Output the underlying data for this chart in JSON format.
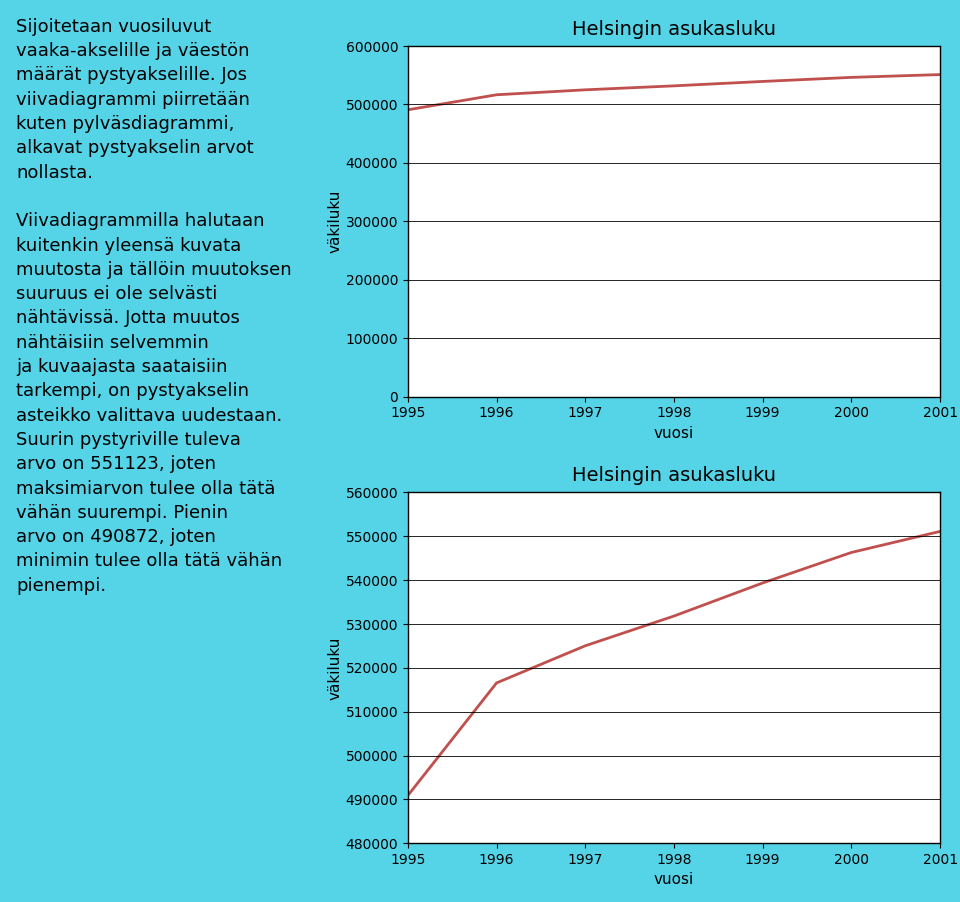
{
  "years": [
    1995,
    1996,
    1997,
    1998,
    1999,
    2000,
    2001
  ],
  "population": [
    490872,
    516562,
    525031,
    531816,
    539363,
    546317,
    551123
  ],
  "title": "Helsingin asukasluku",
  "xlabel": "vuosi",
  "ylabel": "väkiluku",
  "chart1_ylim": [
    0,
    600000
  ],
  "chart1_yticks": [
    0,
    100000,
    200000,
    300000,
    400000,
    500000,
    600000
  ],
  "chart2_ylim": [
    480000,
    560000
  ],
  "chart2_yticks": [
    480000,
    490000,
    500000,
    510000,
    520000,
    530000,
    540000,
    550000,
    560000
  ],
  "line_color": "#c0504d",
  "background_color": "#55d4e8",
  "chart_bg": "#ffffff",
  "text_color": "#000000",
  "left_text_para1": "Sijoitetaan vuosiluvut\nvaaka-akselille ja väestön\nmäärät pystyakselille. Jos\nviivadiagrammi piirretään\nkuten pylväsdiagrammi,\nalkavat pystyakselin arvot\nnollasta.",
  "left_text_para2": "Viivadiagrammilla halutaan\nkuitenkin yleensä kuvata\nmuutosta ja tällöin muutoksen\nsuuruus ei ole selvästi\nnähtävissä. Jotta muutos\nnähtäisiin selvemmin\nja kuvaajasta saataisiin\ntarkempi, on pystyakselin\nasteikko valittava uudestaan.\nSuurin pystyriville tuleva\narvo on 551123, joten\nmaksimiarvon tulee olla tätä\nvähän suurempi. Pienin\narvo on 490872, joten\nminimin tulee olla tätä vähän\npienempi.",
  "font_size_text": 13,
  "font_size_title": 14,
  "font_size_axis": 11,
  "font_size_ticks": 10
}
